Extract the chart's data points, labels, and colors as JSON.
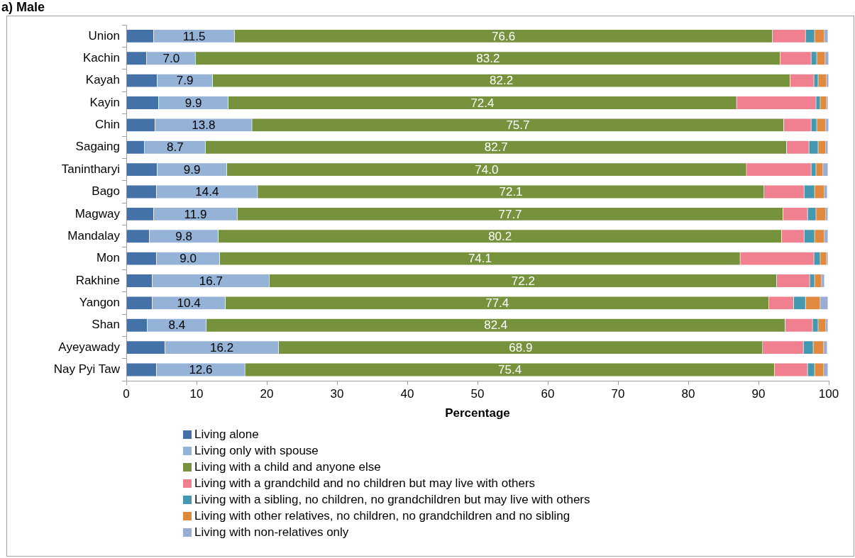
{
  "chart_data": {
    "type": "bar",
    "orientation": "horizontal",
    "stacked": true,
    "title": "a) Male",
    "xlabel": "Percentage",
    "grid": false,
    "legend": "bottom",
    "xlim": [
      0,
      100
    ],
    "xticks": [
      0,
      10,
      20,
      30,
      40,
      50,
      60,
      70,
      80,
      90,
      100
    ],
    "categories": [
      "Union",
      "Kachin",
      "Kayah",
      "Kayin",
      "Chin",
      "Sagaing",
      "Tanintharyi",
      "Bago",
      "Magway",
      "Mandalay",
      "Mon",
      "Rakhine",
      "Yangon",
      "Shan",
      "Ayeyawady",
      "Nay Pyi Taw"
    ],
    "series": [
      {
        "name": "Living alone",
        "color": "#4472a8",
        "values": [
          3.9,
          2.9,
          4.4,
          4.6,
          4.1,
          2.6,
          4.4,
          4.3,
          3.9,
          3.3,
          4.3,
          3.7,
          3.7,
          3.0,
          5.5,
          4.3
        ]
      },
      {
        "name": "Living only with spouse",
        "color": "#94b3d7",
        "values": [
          11.5,
          7.0,
          7.9,
          9.9,
          13.8,
          8.7,
          9.9,
          14.4,
          11.9,
          9.8,
          9.0,
          16.7,
          10.4,
          8.4,
          16.2,
          12.6
        ],
        "value_labels": [
          "11.5",
          "7.0",
          "7.9",
          "9.9",
          "13.8",
          "8.7",
          "9.9",
          "14.4",
          "11.9",
          "9.8",
          "9.0",
          "16.7",
          "10.4",
          "8.4",
          "16.2",
          "12.6"
        ]
      },
      {
        "name": "Living with a child and anyone else",
        "color": "#76923c",
        "values": [
          76.6,
          83.2,
          82.2,
          72.4,
          75.7,
          82.7,
          74.0,
          72.1,
          77.7,
          80.2,
          74.1,
          72.2,
          77.4,
          82.4,
          68.9,
          75.4
        ],
        "value_labels": [
          "76.6",
          "83.2",
          "82.2",
          "72.4",
          "75.7",
          "82.7",
          "74.0",
          "72.1",
          "77.7",
          "80.2",
          "74.1",
          "72.2",
          "77.4",
          "82.4",
          "68.9",
          "75.4"
        ]
      },
      {
        "name": "Living with a grandchild and no children but may live with others",
        "color": "#f08090",
        "values": [
          4.7,
          4.4,
          3.4,
          11.3,
          3.9,
          3.2,
          9.2,
          5.7,
          3.5,
          3.2,
          10.5,
          4.7,
          3.5,
          3.9,
          5.8,
          4.7
        ]
      },
      {
        "name": "Living with a sibling, no children, no grandchildren but may live with others",
        "color": "#4498b0",
        "values": [
          1.3,
          0.8,
          0.6,
          0.6,
          0.8,
          1.3,
          0.7,
          1.5,
          1.2,
          1.5,
          0.9,
          0.7,
          1.7,
          0.8,
          1.4,
          1.0
        ]
      },
      {
        "name": "Living with other relatives, no children, no grandchildren and no sibling",
        "color": "#e08a40",
        "values": [
          1.4,
          1.2,
          1.2,
          0.9,
          1.3,
          1.1,
          1.0,
          1.4,
          1.4,
          1.4,
          0.9,
          1.0,
          2.1,
          1.1,
          1.5,
          1.3
        ]
      },
      {
        "name": "Living with non-relatives only",
        "color": "#98acd4",
        "values": [
          0.5,
          0.5,
          0.3,
          0.2,
          0.4,
          0.3,
          0.7,
          0.4,
          0.3,
          0.5,
          0.2,
          0.4,
          1.1,
          0.3,
          0.5,
          0.6
        ]
      }
    ]
  }
}
